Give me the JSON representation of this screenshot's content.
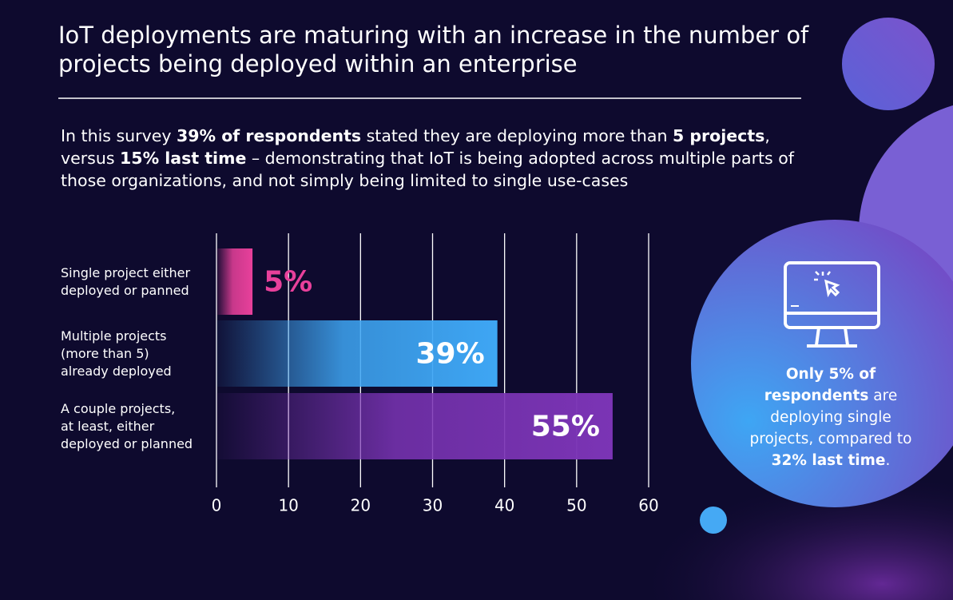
{
  "title": "IoT deployments are maturing with an increase in the number of projects being deployed within an enterprise",
  "subtitle": [
    "In this survey ",
    "39% of respondents",
    " stated they are deploying more than ",
    "5 projects",
    ", versus ",
    "15% last time",
    " – demonstrating that IoT is being adopted across multiple parts of those organizations, and not simply being limited to single use-cases"
  ],
  "callout": [
    "Only 5% of respondents",
    " are deploying single projects, compared to ",
    "32% last time",
    "."
  ],
  "chart_data": {
    "type": "hbar",
    "categories": [
      "Single project either\ndeployed or panned",
      "Multiple projects\n(more than 5)\nalready deployed",
      "A couple projects,\nat least, either\ndeployed or planned"
    ],
    "values": [
      5,
      39,
      55
    ],
    "value_labels": [
      "5%",
      "39%",
      "55%"
    ],
    "colors": [
      "#e8409b",
      "#3ea6f4",
      "#7b34b5"
    ],
    "xlim": [
      0,
      60
    ],
    "xticks": [
      0,
      10,
      20,
      30,
      40,
      50,
      60
    ],
    "grid": true
  }
}
